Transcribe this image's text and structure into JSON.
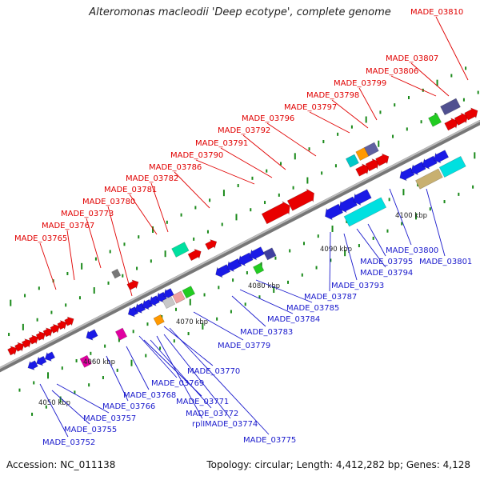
{
  "title": "Alteromonas macleodii 'Deep ecotype', complete genome",
  "footer": {
    "accession": "Accession: NC_011138",
    "summary": "Topology: circular; Length: 4,412,282 bp; Genes: 4,128"
  },
  "colors": {
    "backbone": "#8a8a8a",
    "upper_label": "#e00000",
    "lower_label": "#1a1acc",
    "tick_green": "#1a8a1a"
  },
  "scale_labels": [
    "4050 kbp",
    "4060 kbp",
    "4070 kbp",
    "4080 kbp",
    "4090 kbp",
    "4100 kbp"
  ],
  "upper_genes": [
    "MADE_03765",
    "MADE_03767",
    "MADE_03773",
    "MADE_03780",
    "MADE_03781",
    "MADE_03782",
    "MADE_03786",
    "MADE_03790",
    "MADE_03791",
    "MADE_03792",
    "MADE_03796",
    "MADE_03797",
    "MADE_03798",
    "MADE_03799",
    "MADE_03806",
    "MADE_03807",
    "MADE_03810"
  ],
  "lower_genes": [
    "MADE_03752",
    "MADE_03755",
    "MADE_03757",
    "MADE_03766",
    "MADE_03768",
    "MADE_03769",
    "MADE_03770",
    "MADE_03771",
    "MADE_03772",
    "rplI",
    "MADE_03774",
    "MADE_03775",
    "MADE_03779",
    "MADE_03783",
    "MADE_03784",
    "MADE_03785",
    "MADE_03787",
    "MADE_03793",
    "MADE_03794",
    "MADE_03795",
    "MADE_03800",
    "MADE_03801"
  ]
}
